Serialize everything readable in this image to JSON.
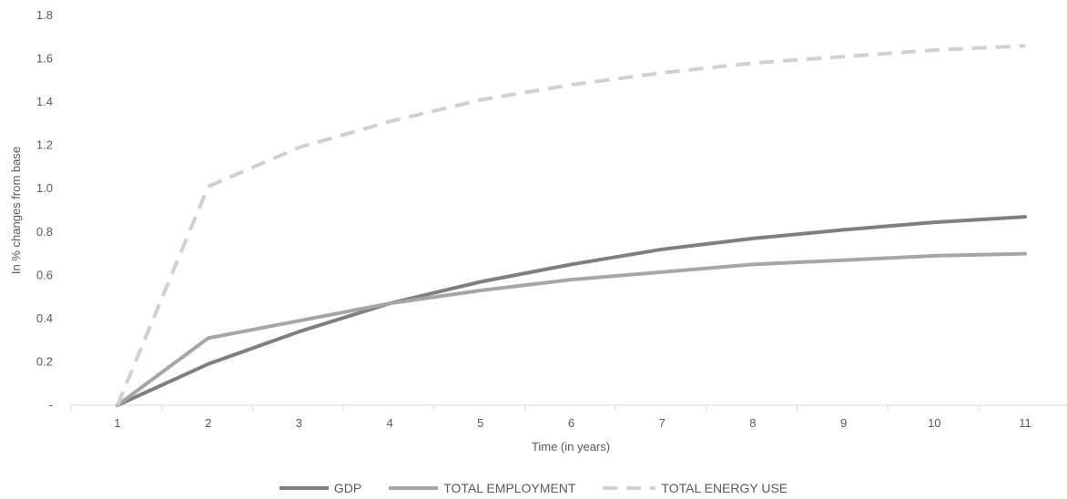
{
  "chart_data": {
    "type": "line",
    "xlabel": "Time  (in years)",
    "ylabel": "In % changes from base",
    "x": [
      1,
      2,
      3,
      4,
      5,
      6,
      7,
      8,
      9,
      10,
      11
    ],
    "ylim": [
      0,
      1.8
    ],
    "yticks": [
      0,
      0.2,
      0.4,
      0.6,
      0.8,
      1.0,
      1.2,
      1.4,
      1.6,
      1.8
    ],
    "ytick_labels": [
      "-",
      "0.2",
      "0.4",
      "0.6",
      "0.8",
      "1.0",
      "1.2",
      "1.4",
      "1.6",
      "1.8"
    ],
    "grid": false,
    "legend_position": "bottom",
    "series": [
      {
        "name": "GDP",
        "color": "#7f7f7f",
        "dashed": false,
        "values": [
          0,
          0.19,
          0.34,
          0.47,
          0.57,
          0.65,
          0.72,
          0.77,
          0.81,
          0.845,
          0.87
        ]
      },
      {
        "name": "TOTAL EMPLOYMENT",
        "color": "#a6a6a6",
        "dashed": false,
        "values": [
          0,
          0.31,
          0.39,
          0.47,
          0.53,
          0.58,
          0.615,
          0.65,
          0.67,
          0.69,
          0.7
        ]
      },
      {
        "name": "TOTAL ENERGY USE",
        "color": "#d0d0d0",
        "dashed": true,
        "values": [
          0,
          1.01,
          1.19,
          1.31,
          1.41,
          1.48,
          1.535,
          1.58,
          1.61,
          1.64,
          1.66
        ]
      }
    ]
  }
}
